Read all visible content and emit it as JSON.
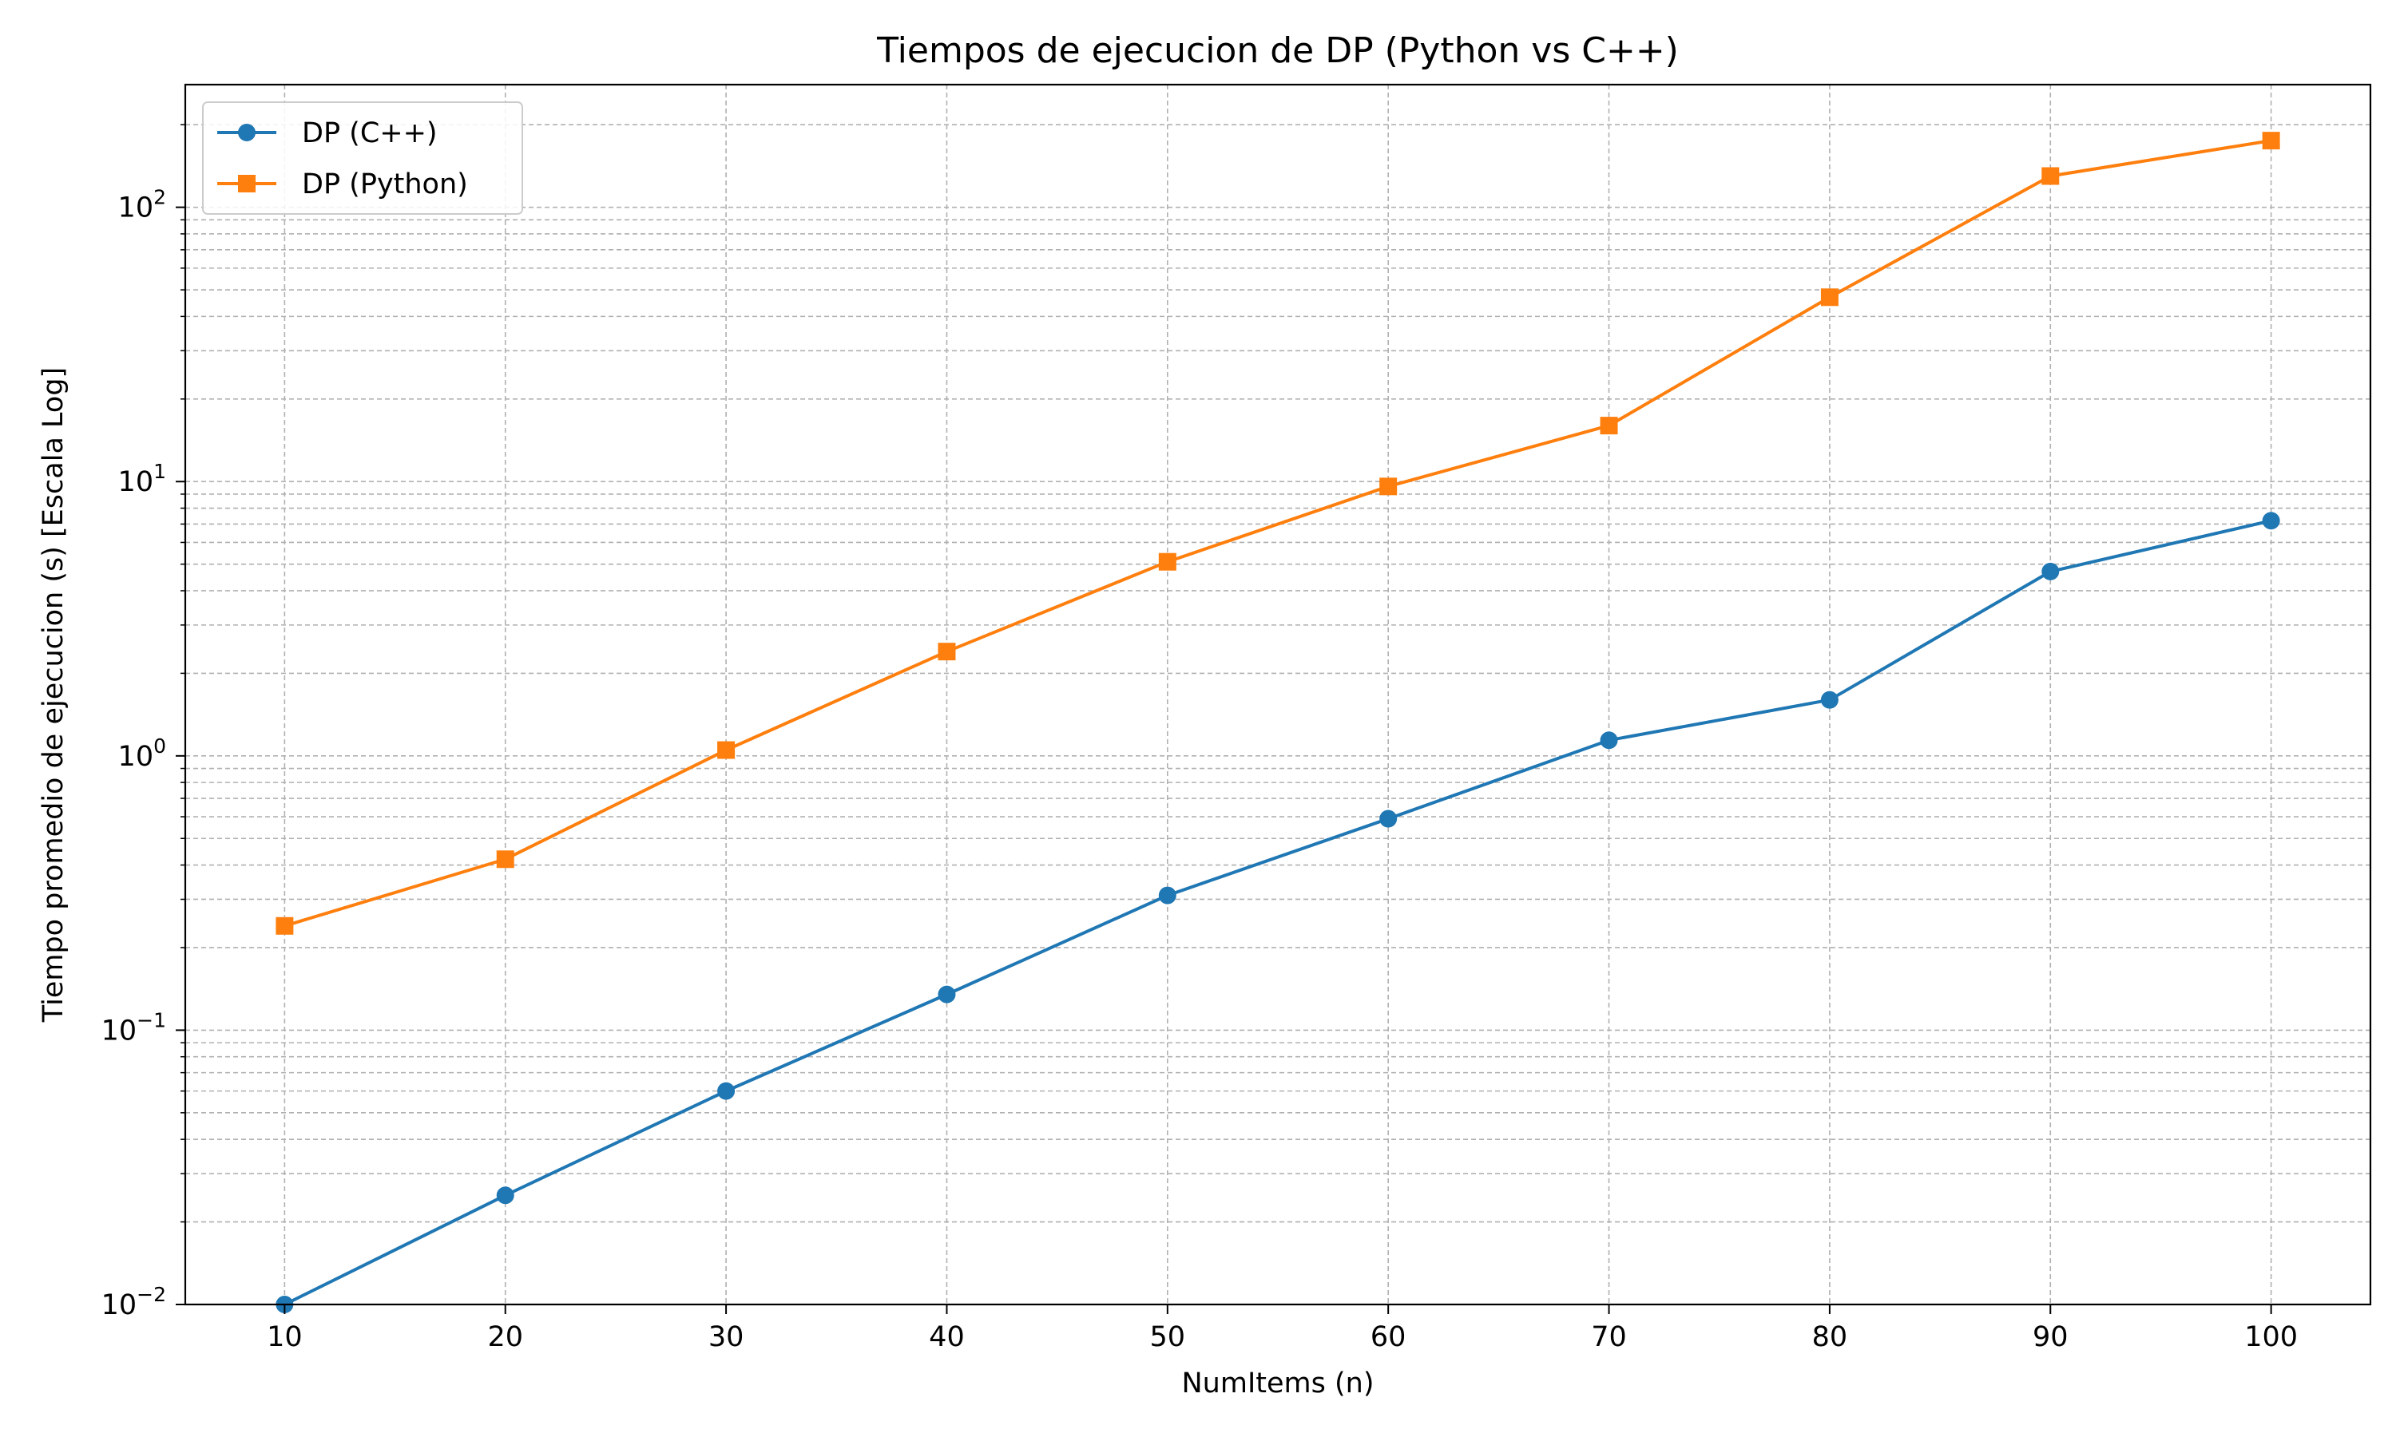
{
  "chart_data": {
    "type": "line",
    "title": "Tiempos de ejecucion de DP (Python vs C++)",
    "xlabel": "NumItems (n)",
    "ylabel": "Tiempo promedio de ejecucion (s) [Escala Log]",
    "x": [
      10,
      20,
      30,
      40,
      50,
      60,
      70,
      80,
      90,
      100
    ],
    "x_ticks": [
      "10",
      "20",
      "30",
      "40",
      "50",
      "60",
      "70",
      "80",
      "90",
      "100"
    ],
    "xlim": [
      5.5,
      104.5
    ],
    "yscale": "log",
    "ylim": [
      0.01,
      280
    ],
    "y_ticks": [
      {
        "value": 0.01,
        "base": "10",
        "exp": "−2"
      },
      {
        "value": 0.1,
        "base": "10",
        "exp": "−1"
      },
      {
        "value": 1,
        "base": "10",
        "exp": "0"
      },
      {
        "value": 10,
        "base": "10",
        "exp": "1"
      },
      {
        "value": 100,
        "base": "10",
        "exp": "2"
      }
    ],
    "grid": true,
    "legend_position": "top-left",
    "series": [
      {
        "name": "DP (C++)",
        "color": "#1f77b4",
        "marker": "circle",
        "values": [
          0.01,
          0.025,
          0.06,
          0.135,
          0.31,
          0.59,
          1.14,
          1.6,
          4.7,
          7.2
        ]
      },
      {
        "name": "DP (Python)",
        "color": "#ff7f0e",
        "marker": "square",
        "values": [
          0.24,
          0.42,
          1.05,
          2.4,
          5.1,
          9.6,
          16,
          47,
          130,
          175
        ]
      }
    ]
  }
}
